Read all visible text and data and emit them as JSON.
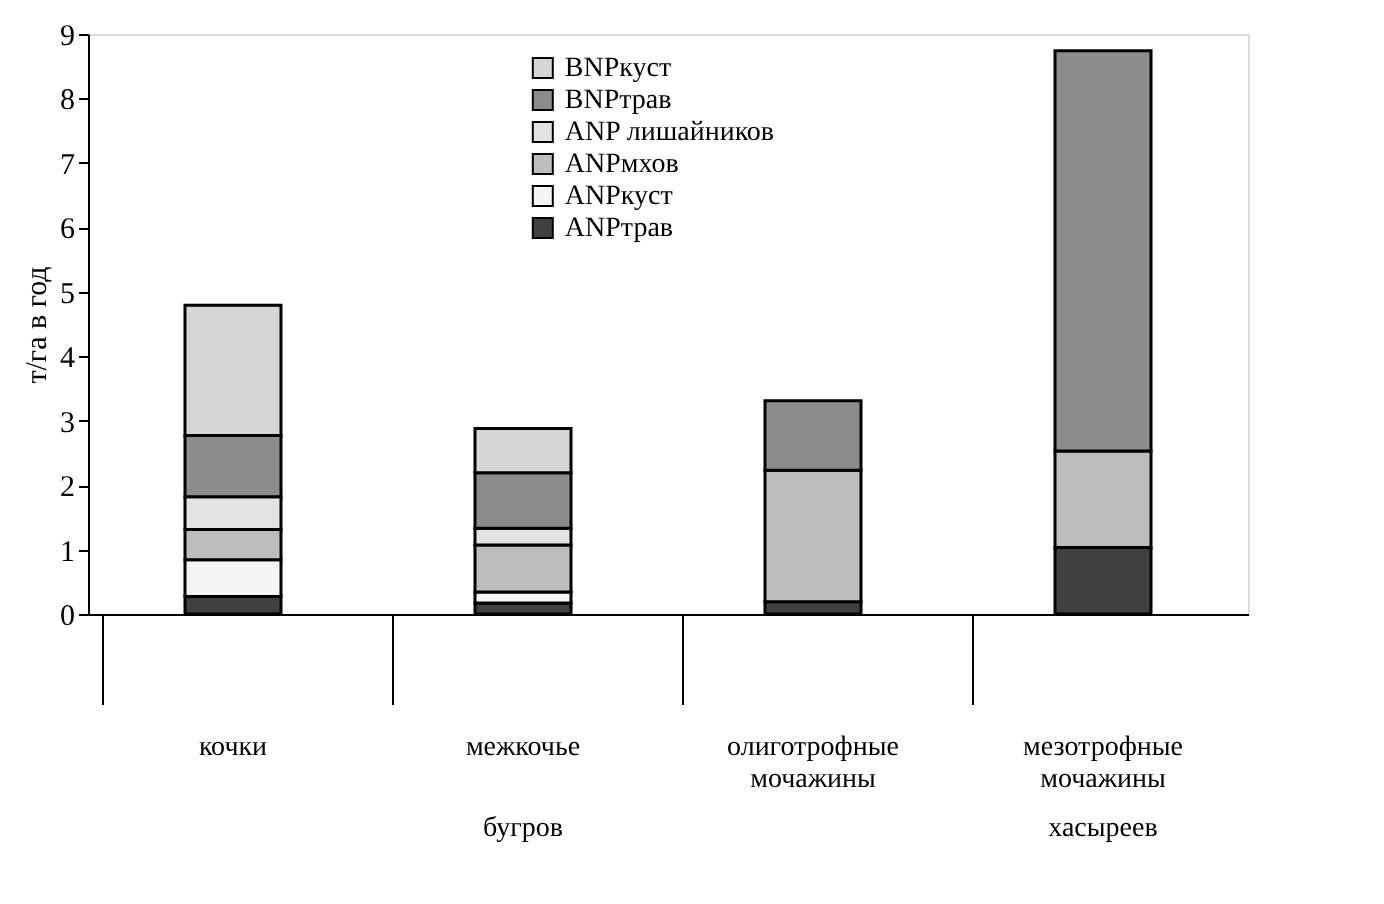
{
  "chart_data": {
    "type": "bar",
    "stacked": true,
    "ylabel": "т/га в год",
    "categories": [
      "кочки",
      "межкочье",
      "олиготрофные мочажины",
      "мезотрофные мочажины"
    ],
    "series": [
      {
        "name": "ANPтрав",
        "color": "#404040",
        "values": [
          0.27,
          0.17,
          0.19,
          1.03
        ]
      },
      {
        "name": "ANPкуст",
        "color": "#f5f5f5",
        "values": [
          0.57,
          0.17,
          0,
          0
        ]
      },
      {
        "name": "ANPмхов",
        "color": "#bdbdbd",
        "values": [
          0.47,
          0.73,
          2.04,
          1.5
        ]
      },
      {
        "name": "ANP лишайников",
        "color": "#e3e3e3",
        "values": [
          0.51,
          0.26,
          0,
          0
        ]
      },
      {
        "name": "BNPтрав",
        "color": "#8c8c8c",
        "values": [
          0.95,
          0.86,
          1.08,
          6.21
        ]
      },
      {
        "name": "BNPкуст",
        "color": "#d6d6d6",
        "values": [
          2.02,
          0.69,
          0,
          0
        ]
      }
    ],
    "ylim": [
      0,
      9
    ],
    "yticks": [
      0,
      1,
      2,
      3,
      4,
      5,
      6,
      7,
      8,
      9
    ],
    "grid": false,
    "legend": "top",
    "annotations": [
      "бугров",
      "хасыреев"
    ]
  }
}
